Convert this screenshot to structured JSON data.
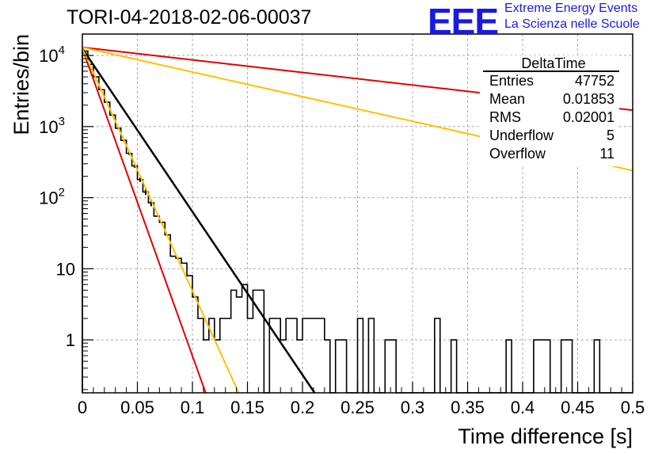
{
  "header": {
    "run_title": "TORI-04-2018-02-06-00037",
    "logo_mark": "EEE",
    "logo_line1": "Extreme Energy Events",
    "logo_line2": "La Scienza nelle Scuole"
  },
  "stats": {
    "title": "DeltaTime",
    "rows": [
      {
        "label": "Entries",
        "value": "47752"
      },
      {
        "label": "Mean",
        "value": "0.01853"
      },
      {
        "label": "RMS",
        "value": "0.02001"
      },
      {
        "label": "Underflow",
        "value": "5"
      },
      {
        "label": "Overflow",
        "value": "11"
      }
    ]
  },
  "colors": {
    "histogram": "#000000",
    "fit": "#000000",
    "red_lines": "#e00000",
    "orange_lines": "#ffbf00",
    "grid": "#aaaaaa"
  },
  "chart_data": {
    "type": "line",
    "title": "",
    "xlabel": "Time difference [s]",
    "ylabel": "Entries/bin",
    "xlim": [
      0,
      0.5
    ],
    "ylim": [
      0.18,
      20000
    ],
    "y_scale": "log",
    "grid": true,
    "x_ticks": [
      "0",
      "0.05",
      "0.1",
      "0.15",
      "0.2",
      "0.25",
      "0.3",
      "0.35",
      "0.4",
      "0.45",
      "0.5"
    ],
    "y_ticks": [
      {
        "value": 1,
        "label": "1"
      },
      {
        "value": 10,
        "label": "10"
      },
      {
        "value": 100,
        "label": "10",
        "exp": "2"
      },
      {
        "value": 1000,
        "label": "10",
        "exp": "3"
      },
      {
        "value": 10000,
        "label": "10",
        "exp": "4"
      }
    ],
    "histogram": {
      "bin_width": 0.005,
      "x_start": 0,
      "counts": [
        11500,
        7500,
        5000,
        3300,
        2200,
        1450,
        950,
        640,
        420,
        280,
        180,
        120,
        85,
        55,
        45,
        30,
        15,
        14,
        12,
        8,
        4,
        2,
        1,
        2,
        1,
        2,
        2,
        5,
        4,
        6,
        2,
        5,
        5,
        0,
        2,
        2,
        1,
        2,
        2,
        1,
        2,
        2,
        2,
        2,
        1,
        0,
        1,
        1,
        0,
        0,
        2,
        0,
        2,
        0,
        0,
        1,
        1,
        0,
        0,
        0,
        0,
        0,
        0,
        0,
        2,
        0,
        0,
        1,
        0,
        0,
        0,
        0,
        0,
        0,
        0,
        0,
        0,
        1,
        0,
        0,
        0,
        0,
        1,
        1,
        1,
        0,
        0,
        1,
        1,
        0,
        0,
        0,
        0,
        1,
        0,
        0,
        0,
        0,
        0,
        0
      ]
    },
    "series": [
      {
        "color": "#000000",
        "x": [
          0,
          0.211
        ],
        "y": [
          12500,
          0.18
        ]
      },
      {
        "color": "#e00000",
        "x": [
          0,
          0.112
        ],
        "y": [
          12500,
          0.18
        ]
      },
      {
        "color": "#ffbf00",
        "x": [
          0,
          0.142
        ],
        "y": [
          12500,
          0.18
        ]
      },
      {
        "color": "#e00000",
        "x": [
          0,
          0.5
        ],
        "y": [
          13000,
          1700
        ]
      },
      {
        "color": "#ffbf00",
        "x": [
          0,
          0.5
        ],
        "y": [
          13000,
          240
        ]
      }
    ]
  }
}
